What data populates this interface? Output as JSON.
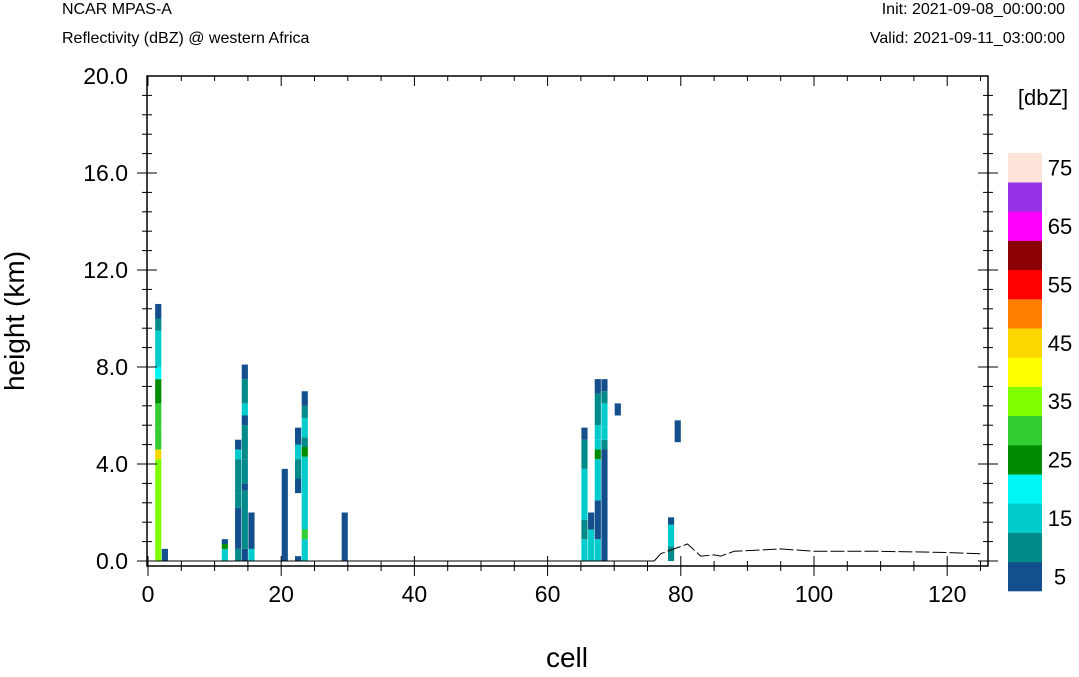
{
  "header": {
    "model": "NCAR MPAS-A",
    "field": "Reflectivity (dBZ) @ western Africa",
    "init": "Init: 2021-09-08_00:00:00",
    "valid": "Valid: 2021-09-11_03:00:00"
  },
  "chart_data": {
    "type": "heatmap",
    "xlabel": "cell",
    "ylabel": "height (km)",
    "xlim": [
      0,
      126
    ],
    "ylim": [
      0,
      20
    ],
    "x_ticks": [
      "0",
      "20",
      "40",
      "60",
      "80",
      "100",
      "120"
    ],
    "y_ticks": [
      "0.0",
      "4.0",
      "8.0",
      "12.0",
      "16.0",
      "20.0"
    ],
    "colorbar": {
      "unit": "[dbZ]",
      "levels": [
        5,
        10,
        15,
        20,
        25,
        30,
        35,
        40,
        45,
        50,
        55,
        60,
        65,
        70,
        75
      ],
      "labels": [
        "5",
        "15",
        "25",
        "35",
        "45",
        "55",
        "65",
        "75"
      ],
      "colors": [
        "#134f8c",
        "#018a8a",
        "#00cccc",
        "#00f5f5",
        "#008b00",
        "#33cc33",
        "#7fff00",
        "#ffff00",
        "#ffd700",
        "#ff7f00",
        "#ff0000",
        "#8b0000",
        "#ff00ff",
        "#9932e6",
        "#ffe4dc"
      ]
    },
    "columns": [
      {
        "cell": 1,
        "segments": [
          [
            0.0,
            1.3,
            35
          ],
          [
            1.3,
            4.2,
            35
          ],
          [
            4.2,
            4.6,
            45
          ],
          [
            4.6,
            5.5,
            30
          ],
          [
            5.5,
            6.5,
            30
          ],
          [
            6.5,
            7.5,
            25
          ],
          [
            7.5,
            8.0,
            20
          ],
          [
            8.0,
            9.5,
            15
          ],
          [
            9.5,
            10.0,
            10
          ],
          [
            10.0,
            10.6,
            5
          ]
        ]
      },
      {
        "cell": 2,
        "segments": [
          [
            0.0,
            0.5,
            5
          ]
        ]
      },
      {
        "cell": 11,
        "segments": [
          [
            0.0,
            0.5,
            15
          ],
          [
            0.5,
            0.7,
            25
          ],
          [
            0.7,
            0.9,
            5
          ]
        ]
      },
      {
        "cell": 13,
        "segments": [
          [
            0.0,
            0.5,
            10
          ],
          [
            0.5,
            2.2,
            5
          ],
          [
            2.2,
            2.8,
            10
          ],
          [
            2.8,
            4.2,
            10
          ],
          [
            4.2,
            4.6,
            15
          ],
          [
            4.6,
            5.0,
            5
          ]
        ]
      },
      {
        "cell": 14,
        "segments": [
          [
            0.0,
            0.5,
            5
          ],
          [
            0.5,
            2.9,
            10
          ],
          [
            2.9,
            3.2,
            5
          ],
          [
            3.2,
            4.2,
            10
          ],
          [
            4.2,
            5.6,
            10
          ],
          [
            5.6,
            6.0,
            5
          ],
          [
            6.0,
            6.5,
            15
          ],
          [
            6.5,
            7.5,
            10
          ],
          [
            7.5,
            8.1,
            5
          ]
        ]
      },
      {
        "cell": 15,
        "segments": [
          [
            0.0,
            0.5,
            15
          ],
          [
            0.5,
            2.0,
            5
          ]
        ]
      },
      {
        "cell": 20,
        "segments": [
          [
            0.0,
            3.8,
            5
          ]
        ]
      },
      {
        "cell": 22,
        "segments": [
          [
            0.0,
            0.2,
            5
          ],
          [
            2.8,
            3.4,
            5
          ],
          [
            3.4,
            4.2,
            10
          ],
          [
            4.2,
            4.8,
            15
          ],
          [
            4.8,
            5.5,
            5
          ]
        ]
      },
      {
        "cell": 23,
        "segments": [
          [
            0.0,
            0.9,
            15
          ],
          [
            0.9,
            1.3,
            30
          ],
          [
            1.3,
            4.3,
            15
          ],
          [
            4.3,
            4.7,
            25
          ],
          [
            4.7,
            5.1,
            10
          ],
          [
            5.1,
            5.9,
            15
          ],
          [
            5.9,
            6.4,
            10
          ],
          [
            6.4,
            7.0,
            5
          ]
        ]
      },
      {
        "cell": 29,
        "segments": [
          [
            0.0,
            2.0,
            5
          ]
        ]
      },
      {
        "cell": 65,
        "segments": [
          [
            0.0,
            0.9,
            15
          ],
          [
            0.9,
            1.7,
            10
          ],
          [
            1.7,
            3.8,
            15
          ],
          [
            3.8,
            5.0,
            10
          ],
          [
            5.0,
            5.5,
            5
          ]
        ]
      },
      {
        "cell": 66,
        "segments": [
          [
            0.0,
            1.3,
            15
          ],
          [
            1.3,
            2.0,
            5
          ]
        ]
      },
      {
        "cell": 67,
        "segments": [
          [
            0.0,
            0.9,
            15
          ],
          [
            0.9,
            2.5,
            5
          ],
          [
            2.5,
            4.2,
            15
          ],
          [
            4.2,
            4.6,
            25
          ],
          [
            4.6,
            5.0,
            15
          ],
          [
            5.0,
            5.6,
            15
          ],
          [
            5.6,
            6.9,
            10
          ],
          [
            6.9,
            7.5,
            5
          ]
        ]
      },
      {
        "cell": 68,
        "segments": [
          [
            0.0,
            4.6,
            5
          ],
          [
            4.6,
            5.0,
            10
          ],
          [
            5.0,
            5.5,
            15
          ],
          [
            5.5,
            6.5,
            15
          ],
          [
            6.5,
            7.0,
            10
          ],
          [
            7.0,
            7.5,
            5
          ]
        ]
      },
      {
        "cell": 70,
        "segments": [
          [
            6.0,
            6.5,
            5
          ]
        ]
      },
      {
        "cell": 78,
        "segments": [
          [
            0.0,
            0.6,
            10
          ],
          [
            0.6,
            1.5,
            15
          ],
          [
            1.5,
            1.8,
            5
          ]
        ]
      },
      {
        "cell": 79,
        "segments": [
          [
            4.9,
            5.8,
            5
          ]
        ]
      }
    ],
    "terrain": [
      [
        76,
        0.0
      ],
      [
        77,
        0.3
      ],
      [
        79,
        0.5
      ],
      [
        81,
        0.7
      ],
      [
        83,
        0.2
      ],
      [
        85,
        0.25
      ],
      [
        86,
        0.2
      ],
      [
        88,
        0.4
      ],
      [
        95,
        0.5
      ],
      [
        100,
        0.4
      ],
      [
        110,
        0.4
      ],
      [
        120,
        0.35
      ],
      [
        125,
        0.3
      ]
    ]
  }
}
